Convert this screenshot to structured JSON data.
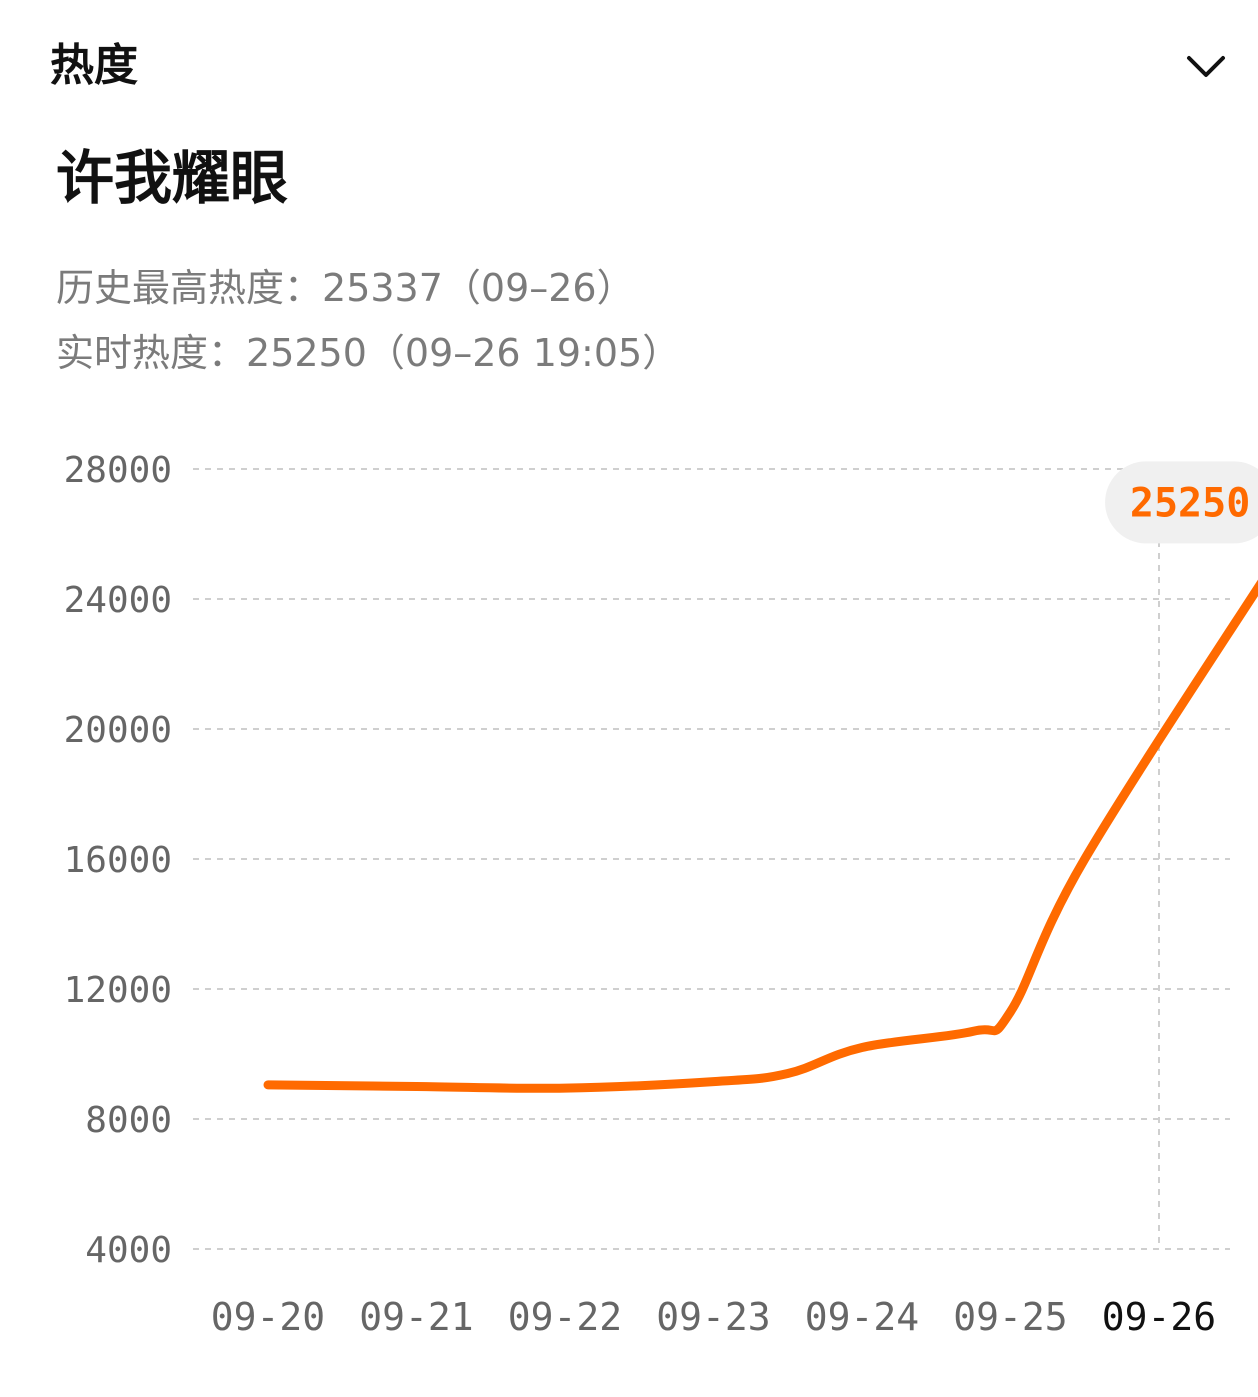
{
  "header": {
    "label": "热度"
  },
  "topic": {
    "title": "许我耀眼"
  },
  "stats": {
    "peak_label": "历史最高热度：",
    "peak_value": "25337",
    "peak_date": "（09–26）",
    "live_label": "实时热度：",
    "live_value": "25250",
    "live_time": "（09–26 19:05）"
  },
  "colors": {
    "line": "#ff6a00",
    "grid": "#cfcfcf",
    "tick_text": "#666666",
    "tick_text_active": "#111111",
    "badge_bg": "#f0f0f0"
  },
  "icons": {
    "collapse": "chevron-down-icon"
  },
  "chart_data": {
    "type": "line",
    "categories": [
      "09-20",
      "09-21",
      "09-22",
      "09-23",
      "09-24",
      "09-25",
      "09-26"
    ],
    "active_category": "09-26",
    "series": [
      {
        "points": [
          {
            "x": "09-20",
            "y": 9050
          },
          {
            "x": "09-21",
            "y": 9000
          },
          {
            "x": "09-22",
            "y": 8950
          },
          {
            "x": "09-23",
            "y": 9150
          },
          {
            "x": "09-23 12:00",
            "y": 9400
          },
          {
            "x": "09-24",
            "y": 10200
          },
          {
            "x": "09-24 18:00",
            "y": 10700
          },
          {
            "x": "09-25",
            "y": 11300
          },
          {
            "x": "09-25 12:00",
            "y": 16000
          },
          {
            "x": "09-26 19:05",
            "y": 25250
          }
        ]
      }
    ],
    "ylim": [
      4000,
      28000
    ],
    "yticks": [
      28000,
      24000,
      20000,
      16000,
      12000,
      8000,
      4000
    ],
    "grid": true,
    "highlight": {
      "x": "09-26",
      "y": 25250,
      "label": "25250"
    }
  }
}
